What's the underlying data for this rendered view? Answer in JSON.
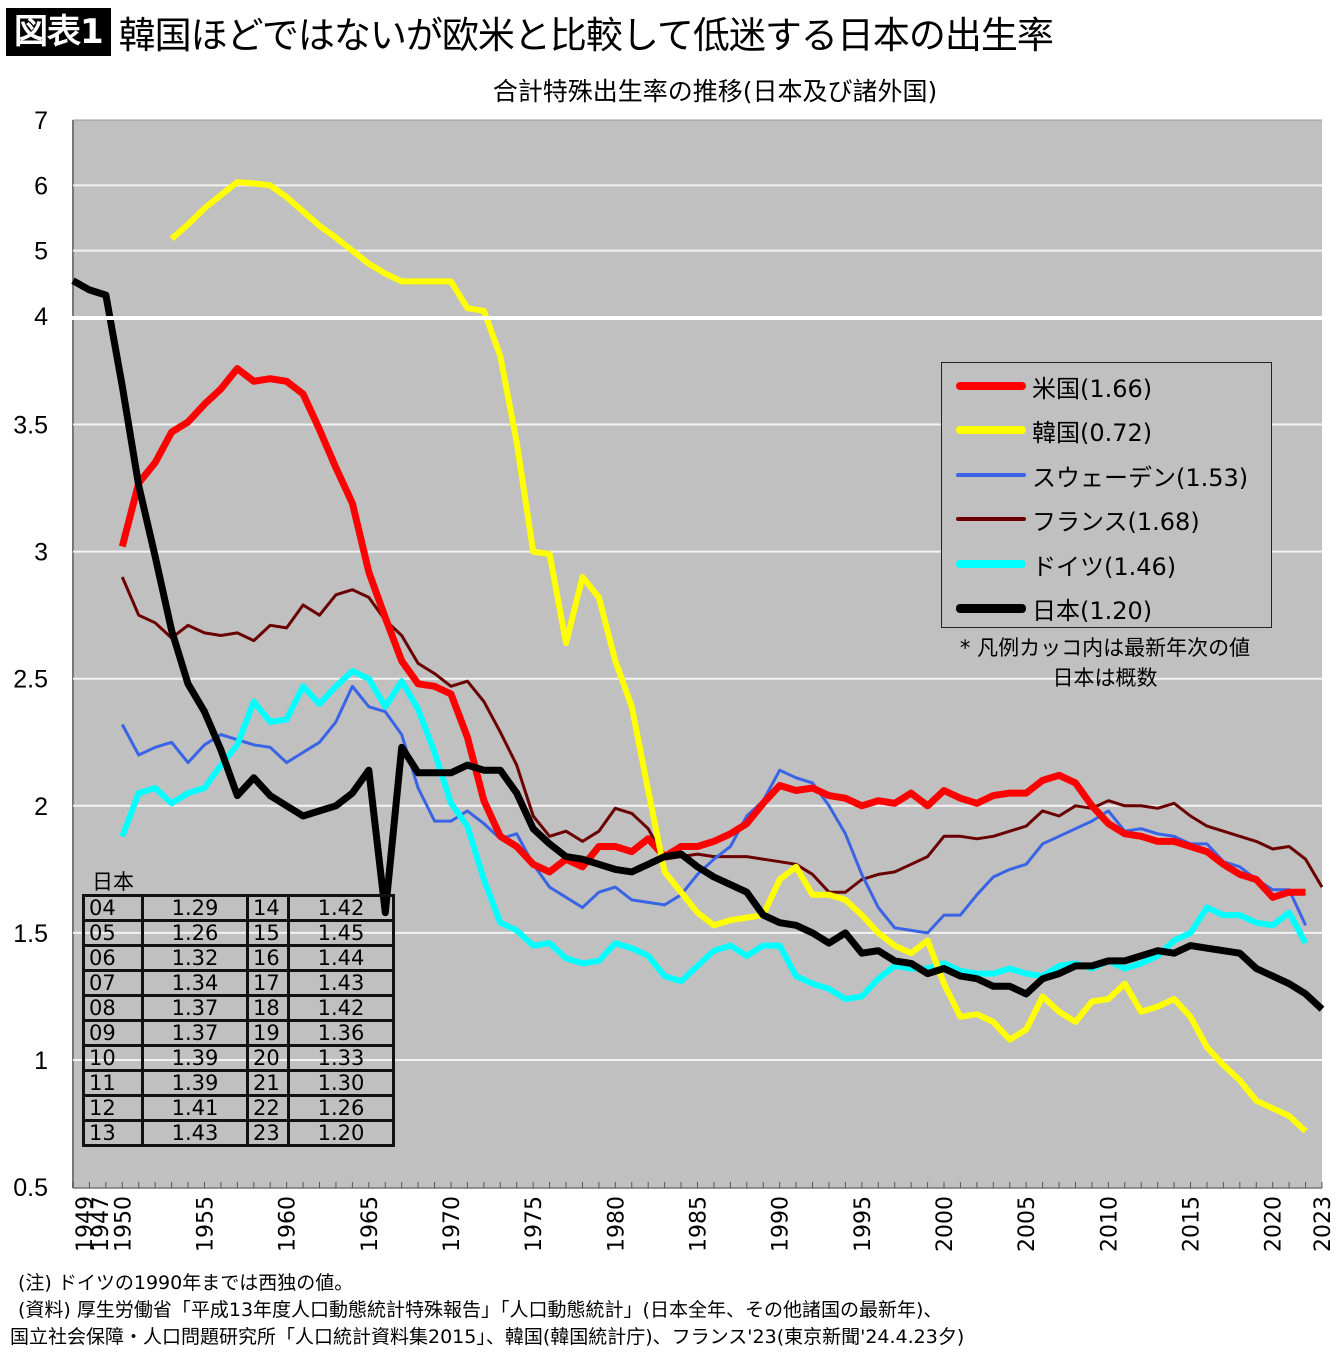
{
  "header": {
    "badge": "図表1",
    "title": "韓国ほどではないが欧米と比較して低迷する日本の出生率",
    "subtitle": "合計特殊出生率の推移(日本及び諸外国)"
  },
  "legend": {
    "items": [
      {
        "label": "米国(1.66)",
        "color": "#ff0000"
      },
      {
        "label": "韓国(0.72)",
        "color": "#ffff00"
      },
      {
        "label": "スウェーデン(1.53)",
        "color": "#3a64e6"
      },
      {
        "label": "フランス(1.68)",
        "color": "#6b0000"
      },
      {
        "label": "ドイツ(1.46)",
        "color": "#00ffff"
      },
      {
        "label": "日本(1.20)",
        "color": "#000000"
      }
    ],
    "note_line1": "* 凡例カッコ内は最新年次の値",
    "note_line2": "日本は概数"
  },
  "japan_table": {
    "caption": "日本",
    "rows": [
      [
        "04",
        "1.29",
        "14",
        "1.42"
      ],
      [
        "05",
        "1.26",
        "15",
        "1.45"
      ],
      [
        "06",
        "1.32",
        "16",
        "1.44"
      ],
      [
        "07",
        "1.34",
        "17",
        "1.43"
      ],
      [
        "08",
        "1.37",
        "18",
        "1.42"
      ],
      [
        "09",
        "1.37",
        "19",
        "1.36"
      ],
      [
        "10",
        "1.39",
        "20",
        "1.33"
      ],
      [
        "11",
        "1.39",
        "21",
        "1.30"
      ],
      [
        "12",
        "1.41",
        "22",
        "1.26"
      ],
      [
        "13",
        "1.43",
        "23",
        "1.20"
      ]
    ]
  },
  "notes": {
    "line1": "(注) ドイツの1990年までは西独の値。",
    "line2": "(資料) 厚生労働省「平成13年度人口動態統計特殊報告」「人口動態統計」(日本全年、その他諸国の最新年)、",
    "line3": "国立社会保障・人口問題研究所「人口統計資料集2015」、韓国(韓国統計庁)、フランス'23(東京新聞'24.4.23夕)"
  },
  "chart_data": {
    "type": "line",
    "title": "合計特殊出生率の推移(日本及び諸外国)",
    "xlabel": "",
    "ylabel": "",
    "xlim": [
      1947,
      2023
    ],
    "y_axis_break": {
      "upper_range": [
        4,
        7
      ],
      "lower_range": [
        0.5,
        4
      ]
    },
    "y_ticks": [
      "7",
      "6",
      "5",
      "4",
      "3.5",
      "3",
      "2.5",
      "2",
      "1.5",
      "1",
      "0.5"
    ],
    "x_ticks": [
      "1949",
      "1947",
      "1950",
      "1955",
      "1960",
      "1965",
      "1970",
      "1975",
      "1980",
      "1985",
      "1990",
      "1995",
      "2000",
      "2005",
      "2010",
      "2015",
      "2020",
      "2023"
    ],
    "grid": true,
    "legend_position": "right",
    "series": [
      {
        "name": "米国",
        "start": 1950,
        "color": "#ff0000",
        "values": [
          3.02,
          3.27,
          3.35,
          3.47,
          3.51,
          3.58,
          3.64,
          3.72,
          3.67,
          3.68,
          3.67,
          3.62,
          3.48,
          3.33,
          3.19,
          2.92,
          2.74,
          2.57,
          2.48,
          2.47,
          2.44,
          2.27,
          2.02,
          1.88,
          1.84,
          1.77,
          1.74,
          1.79,
          1.76,
          1.84,
          1.84,
          1.82,
          1.87,
          1.8,
          1.84,
          1.84,
          1.86,
          1.89,
          1.93,
          2.01,
          2.08,
          2.06,
          2.07,
          2.04,
          2.03,
          2.0,
          2.02,
          2.01,
          2.05,
          2.0,
          2.06,
          2.03,
          2.01,
          2.04,
          2.05,
          2.05,
          2.1,
          2.12,
          2.09,
          2.0,
          1.93,
          1.89,
          1.88,
          1.86,
          1.86,
          1.84,
          1.82,
          1.77,
          1.73,
          1.71,
          1.64,
          1.66,
          1.66
        ]
      },
      {
        "name": "韓国",
        "start": 1953,
        "color": "#ffff00",
        "values": [
          5.18,
          5.4,
          5.65,
          5.85,
          6.05,
          6.03,
          6.0,
          5.82,
          5.6,
          5.38,
          5.2,
          5.0,
          4.8,
          4.65,
          4.53,
          4.53,
          4.53,
          4.53,
          4.12,
          4.08,
          3.77,
          3.43,
          3.0,
          2.99,
          2.64,
          2.9,
          2.82,
          2.57,
          2.39,
          2.06,
          1.74,
          1.66,
          1.58,
          1.53,
          1.55,
          1.56,
          1.57,
          1.71,
          1.76,
          1.65,
          1.65,
          1.63,
          1.57,
          1.5,
          1.45,
          1.42,
          1.47,
          1.3,
          1.17,
          1.18,
          1.15,
          1.08,
          1.12,
          1.25,
          1.19,
          1.15,
          1.23,
          1.24,
          1.3,
          1.19,
          1.21,
          1.24,
          1.17,
          1.05,
          0.98,
          0.92,
          0.84,
          0.81,
          0.78,
          0.72
        ]
      },
      {
        "name": "スウェーデン",
        "start": 1950,
        "color": "#3a64e6",
        "values": [
          2.32,
          2.2,
          2.23,
          2.25,
          2.17,
          2.24,
          2.28,
          2.26,
          2.24,
          2.23,
          2.17,
          2.21,
          2.25,
          2.33,
          2.47,
          2.39,
          2.37,
          2.28,
          2.07,
          1.94,
          1.94,
          1.98,
          1.93,
          1.87,
          1.89,
          1.77,
          1.68,
          1.64,
          1.6,
          1.66,
          1.68,
          1.63,
          1.62,
          1.61,
          1.65,
          1.73,
          1.79,
          1.84,
          1.96,
          2.02,
          2.14,
          2.11,
          2.09,
          2.0,
          1.89,
          1.73,
          1.6,
          1.52,
          1.51,
          1.5,
          1.57,
          1.57,
          1.65,
          1.72,
          1.75,
          1.77,
          1.85,
          1.88,
          1.91,
          1.94,
          1.98,
          1.9,
          1.91,
          1.89,
          1.88,
          1.85,
          1.85,
          1.78,
          1.76,
          1.71,
          1.67,
          1.67,
          1.53
        ]
      },
      {
        "name": "フランス",
        "start": 1950,
        "color": "#6b0000",
        "values": [
          2.9,
          2.75,
          2.72,
          2.66,
          2.71,
          2.68,
          2.67,
          2.68,
          2.65,
          2.71,
          2.7,
          2.79,
          2.75,
          2.83,
          2.85,
          2.82,
          2.73,
          2.67,
          2.56,
          2.52,
          2.47,
          2.49,
          2.41,
          2.29,
          2.16,
          1.96,
          1.88,
          1.9,
          1.86,
          1.9,
          1.99,
          1.97,
          1.91,
          1.79,
          1.8,
          1.81,
          1.8,
          1.8,
          1.8,
          1.79,
          1.78,
          1.77,
          1.73,
          1.66,
          1.66,
          1.71,
          1.73,
          1.74,
          1.77,
          1.8,
          1.88,
          1.88,
          1.87,
          1.88,
          1.9,
          1.92,
          1.98,
          1.96,
          2.0,
          1.99,
          2.02,
          2.0,
          2.0,
          1.99,
          2.01,
          1.96,
          1.92,
          1.9,
          1.88,
          1.86,
          1.83,
          1.84,
          1.79,
          1.68
        ]
      },
      {
        "name": "ドイツ",
        "start": 1950,
        "color": "#00ffff",
        "values": [
          1.88,
          2.05,
          2.07,
          2.01,
          2.05,
          2.07,
          2.16,
          2.24,
          2.41,
          2.33,
          2.34,
          2.47,
          2.4,
          2.47,
          2.53,
          2.5,
          2.39,
          2.49,
          2.38,
          2.21,
          2.01,
          1.92,
          1.71,
          1.54,
          1.51,
          1.45,
          1.46,
          1.4,
          1.38,
          1.39,
          1.46,
          1.44,
          1.41,
          1.33,
          1.31,
          1.37,
          1.43,
          1.45,
          1.41,
          1.45,
          1.45,
          1.33,
          1.3,
          1.28,
          1.24,
          1.25,
          1.32,
          1.37,
          1.36,
          1.36,
          1.38,
          1.35,
          1.34,
          1.34,
          1.36,
          1.34,
          1.33,
          1.37,
          1.38,
          1.36,
          1.39,
          1.36,
          1.38,
          1.41,
          1.47,
          1.5,
          1.6,
          1.57,
          1.57,
          1.54,
          1.53,
          1.58,
          1.46
        ]
      },
      {
        "name": "日本",
        "start": 1947,
        "color": "#000000",
        "values": [
          4.54,
          4.4,
          4.32,
          3.65,
          3.26,
          2.98,
          2.69,
          2.48,
          2.37,
          2.22,
          2.04,
          2.11,
          2.04,
          2.0,
          1.96,
          1.98,
          2.0,
          2.05,
          2.14,
          1.58,
          2.23,
          2.13,
          2.13,
          2.13,
          2.16,
          2.14,
          2.14,
          2.05,
          1.91,
          1.85,
          1.8,
          1.79,
          1.77,
          1.75,
          1.74,
          1.77,
          1.8,
          1.81,
          1.76,
          1.72,
          1.69,
          1.66,
          1.57,
          1.54,
          1.53,
          1.5,
          1.46,
          1.5,
          1.42,
          1.43,
          1.39,
          1.38,
          1.34,
          1.36,
          1.33,
          1.32,
          1.29,
          1.29,
          1.26,
          1.32,
          1.34,
          1.37,
          1.37,
          1.39,
          1.39,
          1.41,
          1.43,
          1.42,
          1.45,
          1.44,
          1.43,
          1.42,
          1.36,
          1.33,
          1.3,
          1.26,
          1.2
        ]
      }
    ]
  }
}
